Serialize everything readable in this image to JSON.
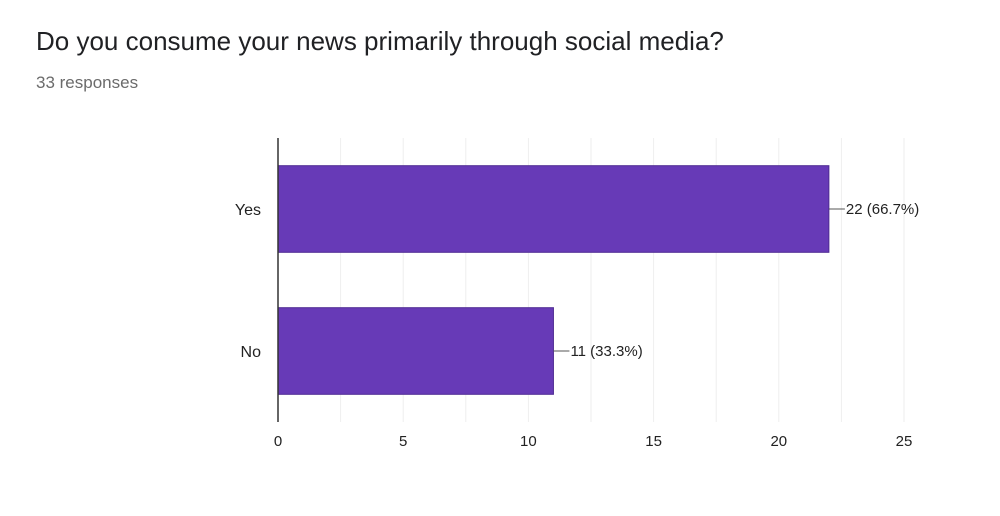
{
  "question": {
    "title": "Do you consume your news primarily through social media?",
    "responses": "33 responses"
  },
  "colors": {
    "bar": "#673ab7",
    "bar_border": "#4e2a93",
    "grid": "#eeeeee",
    "axis": "#333333"
  },
  "chart_data": {
    "type": "bar",
    "orientation": "horizontal",
    "categories": [
      "Yes",
      "No"
    ],
    "values": [
      22,
      11
    ],
    "data_labels": [
      "22 (66.7%)",
      "11 (33.3%)"
    ],
    "x_ticks": [
      0,
      5,
      10,
      15,
      20,
      25
    ],
    "xlim": [
      0,
      25
    ],
    "grid": true
  }
}
